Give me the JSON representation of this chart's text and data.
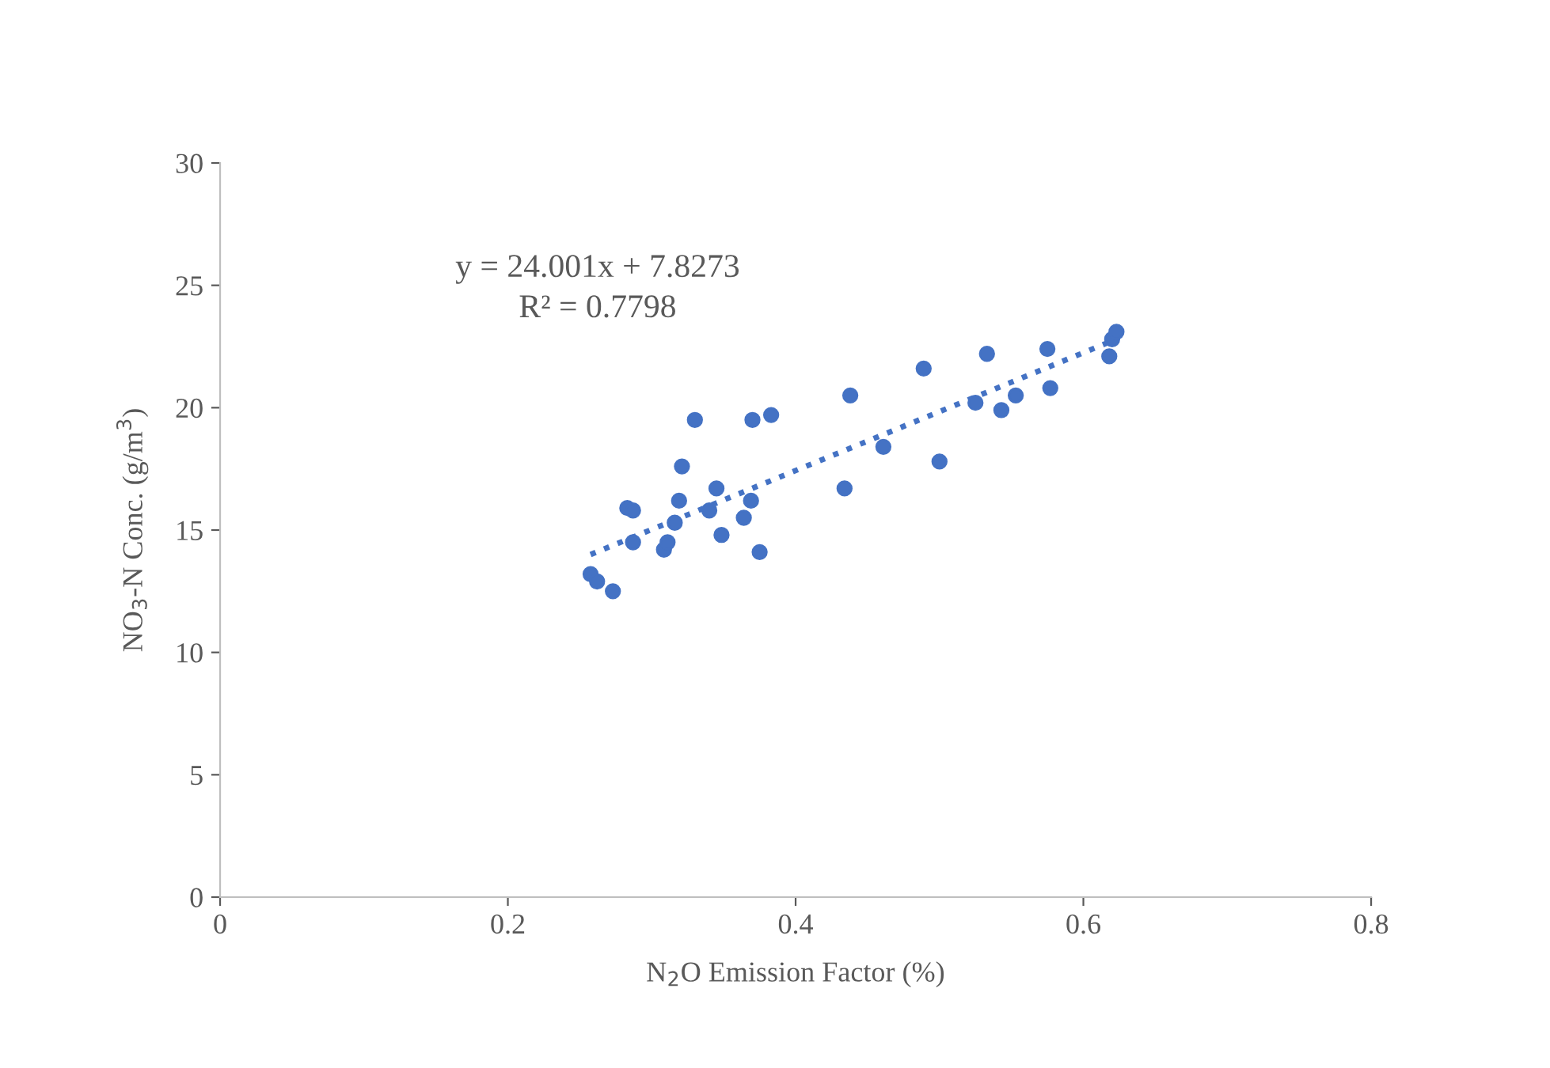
{
  "chart_data": {
    "type": "scatter",
    "xlabel": "N$_{2}$O Emission Factor (%)",
    "ylabel": "NO$_{3}$-N Conc. (g/m$^{3}$)",
    "annotations": [
      "y = 24.001x + 7.8273",
      "R² = 0.7798"
    ],
    "xlim": [
      0,
      0.8
    ],
    "xticks": [
      0,
      0.2,
      0.4,
      0.6,
      0.8
    ],
    "ylim": [
      0,
      30
    ],
    "yticks": [
      0,
      5,
      10,
      15,
      20,
      25,
      30
    ],
    "grid": false,
    "legend": false,
    "series": [
      {
        "color": "#4472c4",
        "marker": "circle",
        "x": [
          0.2575,
          0.262,
          0.273,
          0.283,
          0.287,
          0.287,
          0.3085,
          0.311,
          0.316,
          0.319,
          0.321,
          0.33,
          0.345,
          0.34,
          0.3485,
          0.364,
          0.369,
          0.375,
          0.37,
          0.383,
          0.434,
          0.438,
          0.461,
          0.489,
          0.5,
          0.525,
          0.533,
          0.543,
          0.553,
          0.575,
          0.577,
          0.618,
          0.62,
          0.623
        ],
        "values": [
          13.2,
          12.9,
          12.5,
          15.9,
          15.8,
          14.5,
          14.2,
          14.5,
          15.3,
          16.2,
          17.6,
          19.5,
          16.7,
          15.8,
          14.8,
          15.5,
          16.2,
          14.1,
          19.5,
          19.7,
          16.7,
          20.5,
          18.4,
          21.6,
          17.8,
          20.2,
          22.2,
          19.9,
          20.5,
          22.4,
          20.8,
          22.1,
          22.8,
          23.1
        ]
      },
      {
        "type": "line",
        "color": "#4472c4",
        "line_style": "dotted",
        "marker": "none",
        "x": [
          0.2575,
          0.623
        ],
        "values": [
          14.0,
          22.8
        ]
      }
    ]
  }
}
